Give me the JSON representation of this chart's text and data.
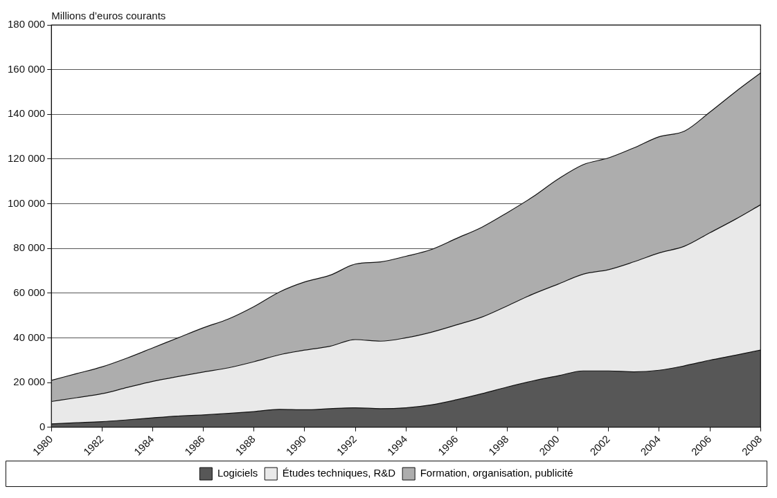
{
  "chart_data": {
    "type": "area",
    "ylabel": "Millions d’euros courants",
    "stacked": true,
    "x": [
      1980,
      1981,
      1982,
      1983,
      1984,
      1985,
      1986,
      1987,
      1988,
      1989,
      1990,
      1991,
      1992,
      1993,
      1994,
      1995,
      1996,
      1997,
      1998,
      1999,
      2000,
      2001,
      2002,
      2003,
      2004,
      2005,
      2006,
      2007,
      2008
    ],
    "series": [
      {
        "name": "Logiciels",
        "color": "#575757",
        "values": [
          1500,
          2000,
          2500,
          3300,
          4200,
          5000,
          5500,
          6200,
          7000,
          8000,
          7800,
          8300,
          8700,
          8300,
          8700,
          10000,
          12300,
          15000,
          18000,
          20700,
          23000,
          25200,
          25200,
          24800,
          25500,
          27500,
          30000,
          32200,
          34500
        ]
      },
      {
        "name": "Études techniques, R&D",
        "color": "#e9e9e9",
        "values": [
          10000,
          11200,
          12500,
          14500,
          16300,
          17700,
          19200,
          20400,
          22300,
          24400,
          26700,
          27900,
          30500,
          30200,
          31300,
          32500,
          33500,
          34300,
          36300,
          38800,
          41000,
          43300,
          45300,
          49200,
          52500,
          53500,
          57000,
          60800,
          65000
        ]
      },
      {
        "name": "Formation, organisation, publicité",
        "color": "#adadad",
        "values": [
          9500,
          10800,
          12000,
          13200,
          15000,
          17300,
          19800,
          21900,
          24700,
          28100,
          30500,
          31800,
          33800,
          35500,
          36500,
          37000,
          38700,
          40200,
          41700,
          43500,
          47000,
          49000,
          50000,
          51000,
          52000,
          51500,
          54000,
          57000,
          59000
        ]
      }
    ],
    "xlim": [
      1980,
      2008
    ],
    "xticks": [
      1980,
      1982,
      1984,
      1986,
      1988,
      1990,
      1992,
      1994,
      1996,
      1998,
      2000,
      2002,
      2004,
      2006,
      2008
    ],
    "ylim": [
      0,
      180000
    ],
    "yticks": [
      0,
      {
        "value": 20000,
        "label": "20 000"
      },
      {
        "value": 40000,
        "label": "40 000"
      },
      {
        "value": 60000,
        "label": "60 000"
      },
      {
        "value": 80000,
        "label": "80 000"
      },
      {
        "value": 100000,
        "label": "100 000"
      },
      {
        "value": 120000,
        "label": "120 000"
      },
      {
        "value": 140000,
        "label": "140 000"
      },
      {
        "value": 160000,
        "label": "160 000"
      },
      {
        "value": 180000,
        "label": "180 000"
      }
    ],
    "grid": "y",
    "legend": "bottom"
  }
}
